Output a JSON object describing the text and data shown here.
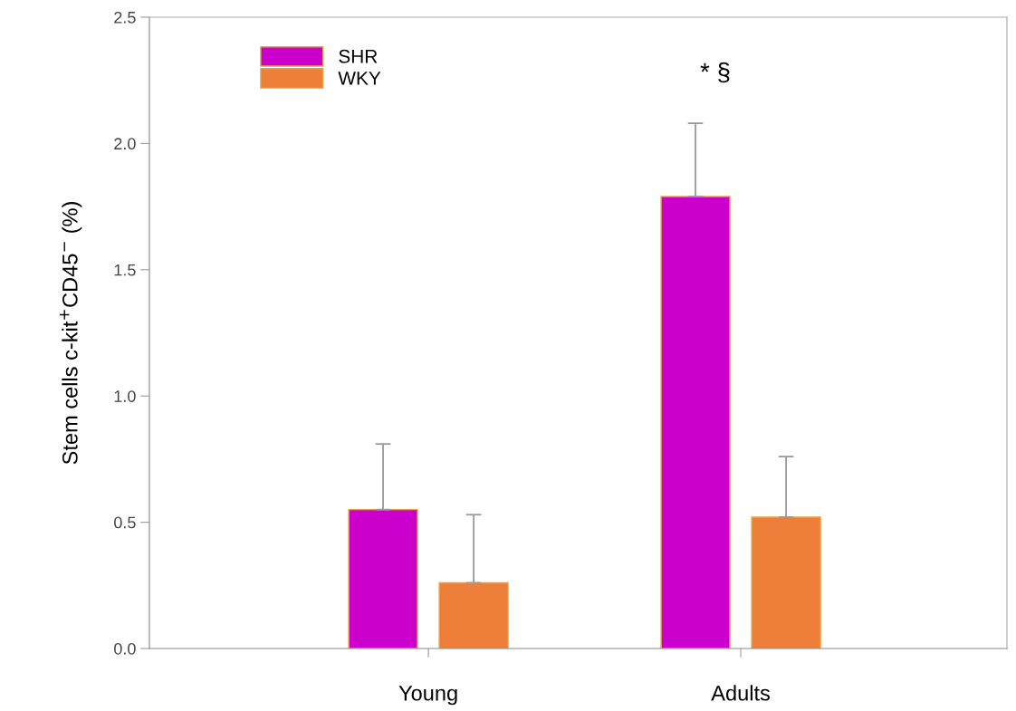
{
  "chart_data": {
    "type": "bar",
    "ylabel": "Stem cells c-kit$^{+}$CD45$^{−}$ (%)",
    "categories": [
      "Young",
      "Adults"
    ],
    "series": [
      {
        "name": "SHR",
        "color": "#cc00cc",
        "values": [
          0.55,
          1.79
        ],
        "errors": [
          [
            0.55,
            0.81
          ],
          [
            1.79,
            2.08
          ]
        ]
      },
      {
        "name": "WKY",
        "color": "#ee7f3a",
        "values": [
          0.26,
          0.52
        ],
        "errors": [
          [
            0.26,
            0.53
          ],
          [
            0.52,
            0.76
          ]
        ]
      }
    ],
    "ylim": [
      0,
      2.5
    ],
    "yticks": [
      {
        "value": 0,
        "label": "0.0"
      },
      {
        "value": 0.5,
        "label": "0.5"
      },
      {
        "value": 1,
        "label": "1.0"
      },
      {
        "value": 1.5,
        "label": "1.5"
      },
      {
        "value": 2,
        "label": "2.0"
      },
      {
        "value": 2.5,
        "label": "2.5"
      }
    ],
    "annotations": [
      "* §"
    ],
    "legend": "top left",
    "grid": false
  }
}
